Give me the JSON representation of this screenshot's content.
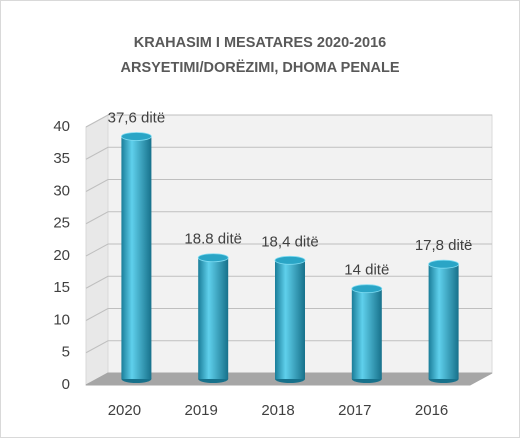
{
  "chart_data": {
    "type": "bar",
    "title": "KRAHASIM I MESATARES 2020-2016",
    "subtitle": "ARSYETIMI/DORËZIMI,  DHOMA PENALE",
    "categories": [
      "2020",
      "2019",
      "2018",
      "2017",
      "2016"
    ],
    "values": [
      37.6,
      18.8,
      18.4,
      14,
      17.8
    ],
    "value_labels": [
      "37,6 ditë",
      "18.8 ditë",
      "18,4 ditë",
      "14 ditë",
      "17,8 ditë"
    ],
    "color": "#2aa5c6",
    "ylim": [
      0,
      40
    ],
    "yticks": [
      0,
      5,
      10,
      15,
      20,
      25,
      30,
      35,
      40
    ],
    "grid": true
  }
}
